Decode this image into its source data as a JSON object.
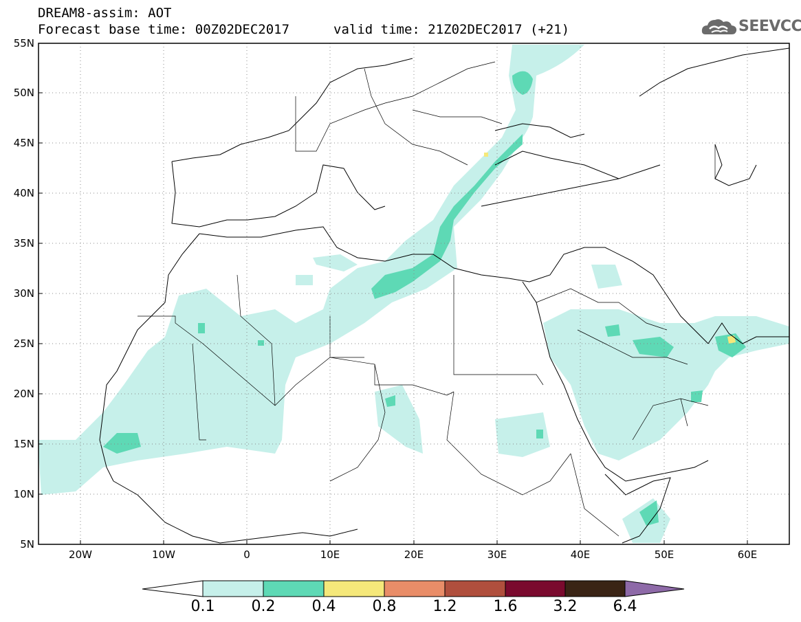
{
  "header": {
    "line1": "DREAM8-assim: AOT",
    "line2": "Forecast base time: 00Z02DEC2017",
    "valid": "valid time: 21Z02DEC2017 (+21)"
  },
  "logo": {
    "text": "SEEVCCC",
    "icon": "cloud-icon"
  },
  "map": {
    "lat_labels": [
      "55N",
      "50N",
      "45N",
      "40N",
      "35N",
      "30N",
      "25N",
      "20N",
      "15N",
      "10N",
      "5N"
    ],
    "lon_labels": [
      "20W",
      "10W",
      "0",
      "10E",
      "20E",
      "30E",
      "40E",
      "50E",
      "60E"
    ]
  },
  "colorbar": {
    "labels": [
      "0.1",
      "0.2",
      "0.4",
      "0.8",
      "1.2",
      "1.6",
      "3.2",
      "6.4"
    ],
    "colors": [
      "#ffffff",
      "#c6f0ea",
      "#5ed9b5",
      "#f5e87a",
      "#e98d68",
      "#b04f3d",
      "#7a0a2e",
      "#3a2415",
      "#8e6aa8"
    ]
  },
  "chart_data": {
    "type": "heatmap",
    "title": "DREAM8-assim: AOT",
    "variable": "AOT",
    "x_range": [
      -25,
      65
    ],
    "y_range": [
      5,
      55
    ],
    "levels": [
      0.1,
      0.2,
      0.4,
      0.8,
      1.2,
      1.6,
      3.2,
      6.4
    ]
  }
}
